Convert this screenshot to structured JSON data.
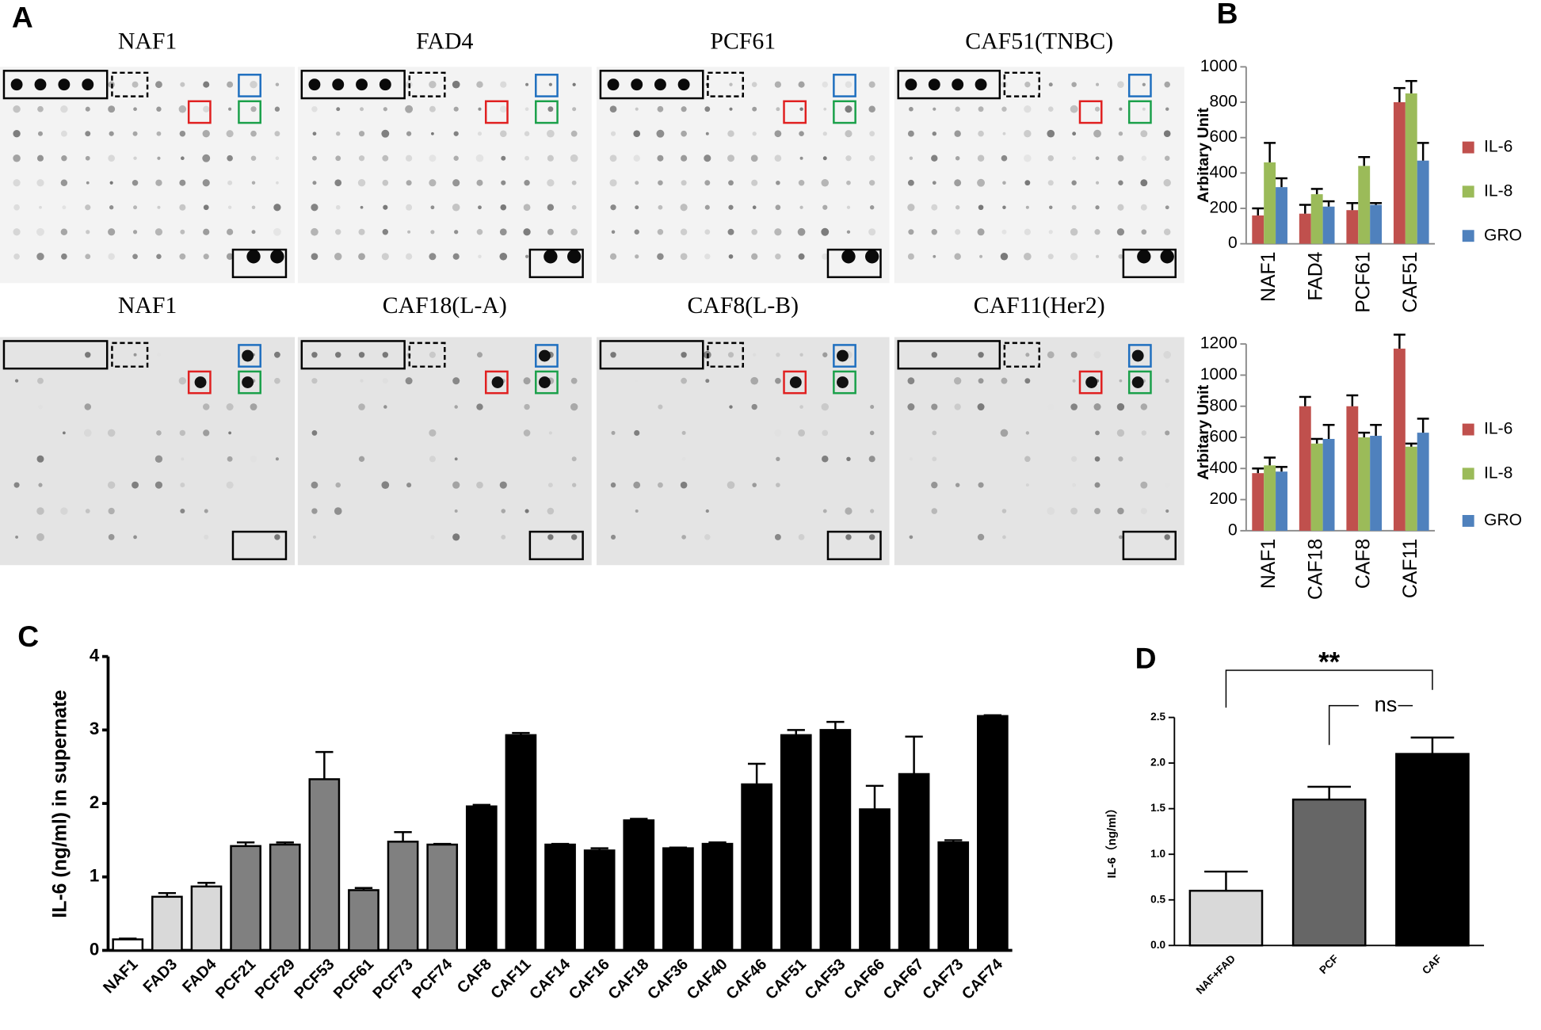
{
  "panel_labels": [
    "A",
    "B",
    "C",
    "D"
  ],
  "blots": [
    {
      "title": "NAF1"
    },
    {
      "title": "FAD4"
    },
    {
      "title": "PCF61"
    },
    {
      "title": "CAF51(TNBC)"
    },
    {
      "title": "NAF1"
    },
    {
      "title": "CAF18(L-A)"
    },
    {
      "title": "CAF8(L-B)"
    },
    {
      "title": "CAF11(Her2)"
    }
  ],
  "chart_data": [
    {
      "type": "bar",
      "y_label": "Arbitary Unit",
      "categories": [
        "NAF1",
        "FAD4",
        "PCF61",
        "CAF51"
      ],
      "series": [
        {
          "name": "IL-6",
          "color": "#c0504d",
          "values": [
            160,
            170,
            190,
            800
          ],
          "errors": [
            40,
            50,
            40,
            80
          ]
        },
        {
          "name": "IL-8",
          "color": "#9bbb59",
          "values": [
            460,
            280,
            440,
            850
          ],
          "errors": [
            110,
            30,
            50,
            70
          ]
        },
        {
          "name": "GRO",
          "color": "#4f81bd",
          "values": [
            320,
            210,
            220,
            470
          ],
          "errors": [
            50,
            30,
            10,
            100
          ]
        }
      ],
      "ylim": [
        0,
        1000
      ],
      "yticks": [
        0,
        200,
        400,
        600,
        800,
        1000
      ]
    },
    {
      "type": "bar",
      "y_label": "Arbitary Unit",
      "categories": [
        "NAF1",
        "CAF18",
        "CAF8",
        "CAF11"
      ],
      "series": [
        {
          "name": "IL-6",
          "color": "#c0504d",
          "values": [
            370,
            800,
            800,
            1170
          ],
          "errors": [
            30,
            60,
            70,
            90
          ]
        },
        {
          "name": "IL-8",
          "color": "#9bbb59",
          "values": [
            420,
            560,
            600,
            540
          ],
          "errors": [
            50,
            30,
            30,
            20
          ]
        },
        {
          "name": "GRO",
          "color": "#4f81bd",
          "values": [
            380,
            590,
            610,
            630
          ],
          "errors": [
            30,
            90,
            70,
            90
          ]
        }
      ],
      "ylim": [
        0,
        1200
      ],
      "yticks": [
        0,
        200,
        400,
        600,
        800,
        1000,
        1200
      ]
    },
    {
      "type": "bar",
      "y_label": "IL-6 (ng/ml) in supernate",
      "categories": [
        "NAF1",
        "FAD3",
        "FAD4",
        "PCF21",
        "PCF29",
        "PCF53",
        "PCF61",
        "PCF73",
        "PCF74",
        "CAF8",
        "CAF11",
        "CAF14",
        "CAF16",
        "CAF18",
        "CAF36",
        "CAF40",
        "CAF46",
        "CAF51",
        "CAF53",
        "CAF66",
        "CAF67",
        "CAF73",
        "CAF74"
      ],
      "values": [
        0.15,
        0.73,
        0.87,
        1.42,
        1.44,
        2.33,
        0.82,
        1.48,
        1.44,
        1.96,
        2.93,
        1.44,
        1.36,
        1.77,
        1.39,
        1.45,
        2.26,
        2.93,
        3.0,
        1.92,
        2.4,
        1.47,
        3.19
      ],
      "errors": [
        0.01,
        0.05,
        0.05,
        0.05,
        0.03,
        0.37,
        0.03,
        0.13,
        0.01,
        0.02,
        0.03,
        0.01,
        0.03,
        0.02,
        0.01,
        0.02,
        0.28,
        0.07,
        0.11,
        0.32,
        0.51,
        0.03,
        0.01
      ],
      "colors": [
        "#ffffff",
        "#d9d9d9",
        "#d9d9d9",
        "#808080",
        "#808080",
        "#808080",
        "#808080",
        "#808080",
        "#808080",
        "#000000",
        "#000000",
        "#000000",
        "#000000",
        "#000000",
        "#000000",
        "#000000",
        "#000000",
        "#000000",
        "#000000",
        "#000000",
        "#000000",
        "#000000",
        "#000000"
      ],
      "ylim": [
        0,
        4
      ],
      "yticks": [
        0,
        1,
        2,
        3,
        4
      ]
    },
    {
      "type": "bar",
      "y_label": "IL-6（ng/ml）",
      "categories": [
        "NAF+FAD",
        "PCF",
        "CAF"
      ],
      "values": [
        0.6,
        1.6,
        2.1
      ],
      "errors": [
        0.21,
        0.14,
        0.18
      ],
      "colors": [
        "#d9d9d9",
        "#666666",
        "#000000"
      ],
      "ylim": [
        0,
        2.5
      ],
      "yticks": [
        {
          "value": 0,
          "label": "0.0"
        },
        0.5,
        {
          "value": 1,
          "label": "1.0"
        },
        1.5,
        {
          "value": 2,
          "label": "2.0"
        },
        2.5
      ],
      "annotations": [
        "**",
        "ns"
      ]
    }
  ]
}
